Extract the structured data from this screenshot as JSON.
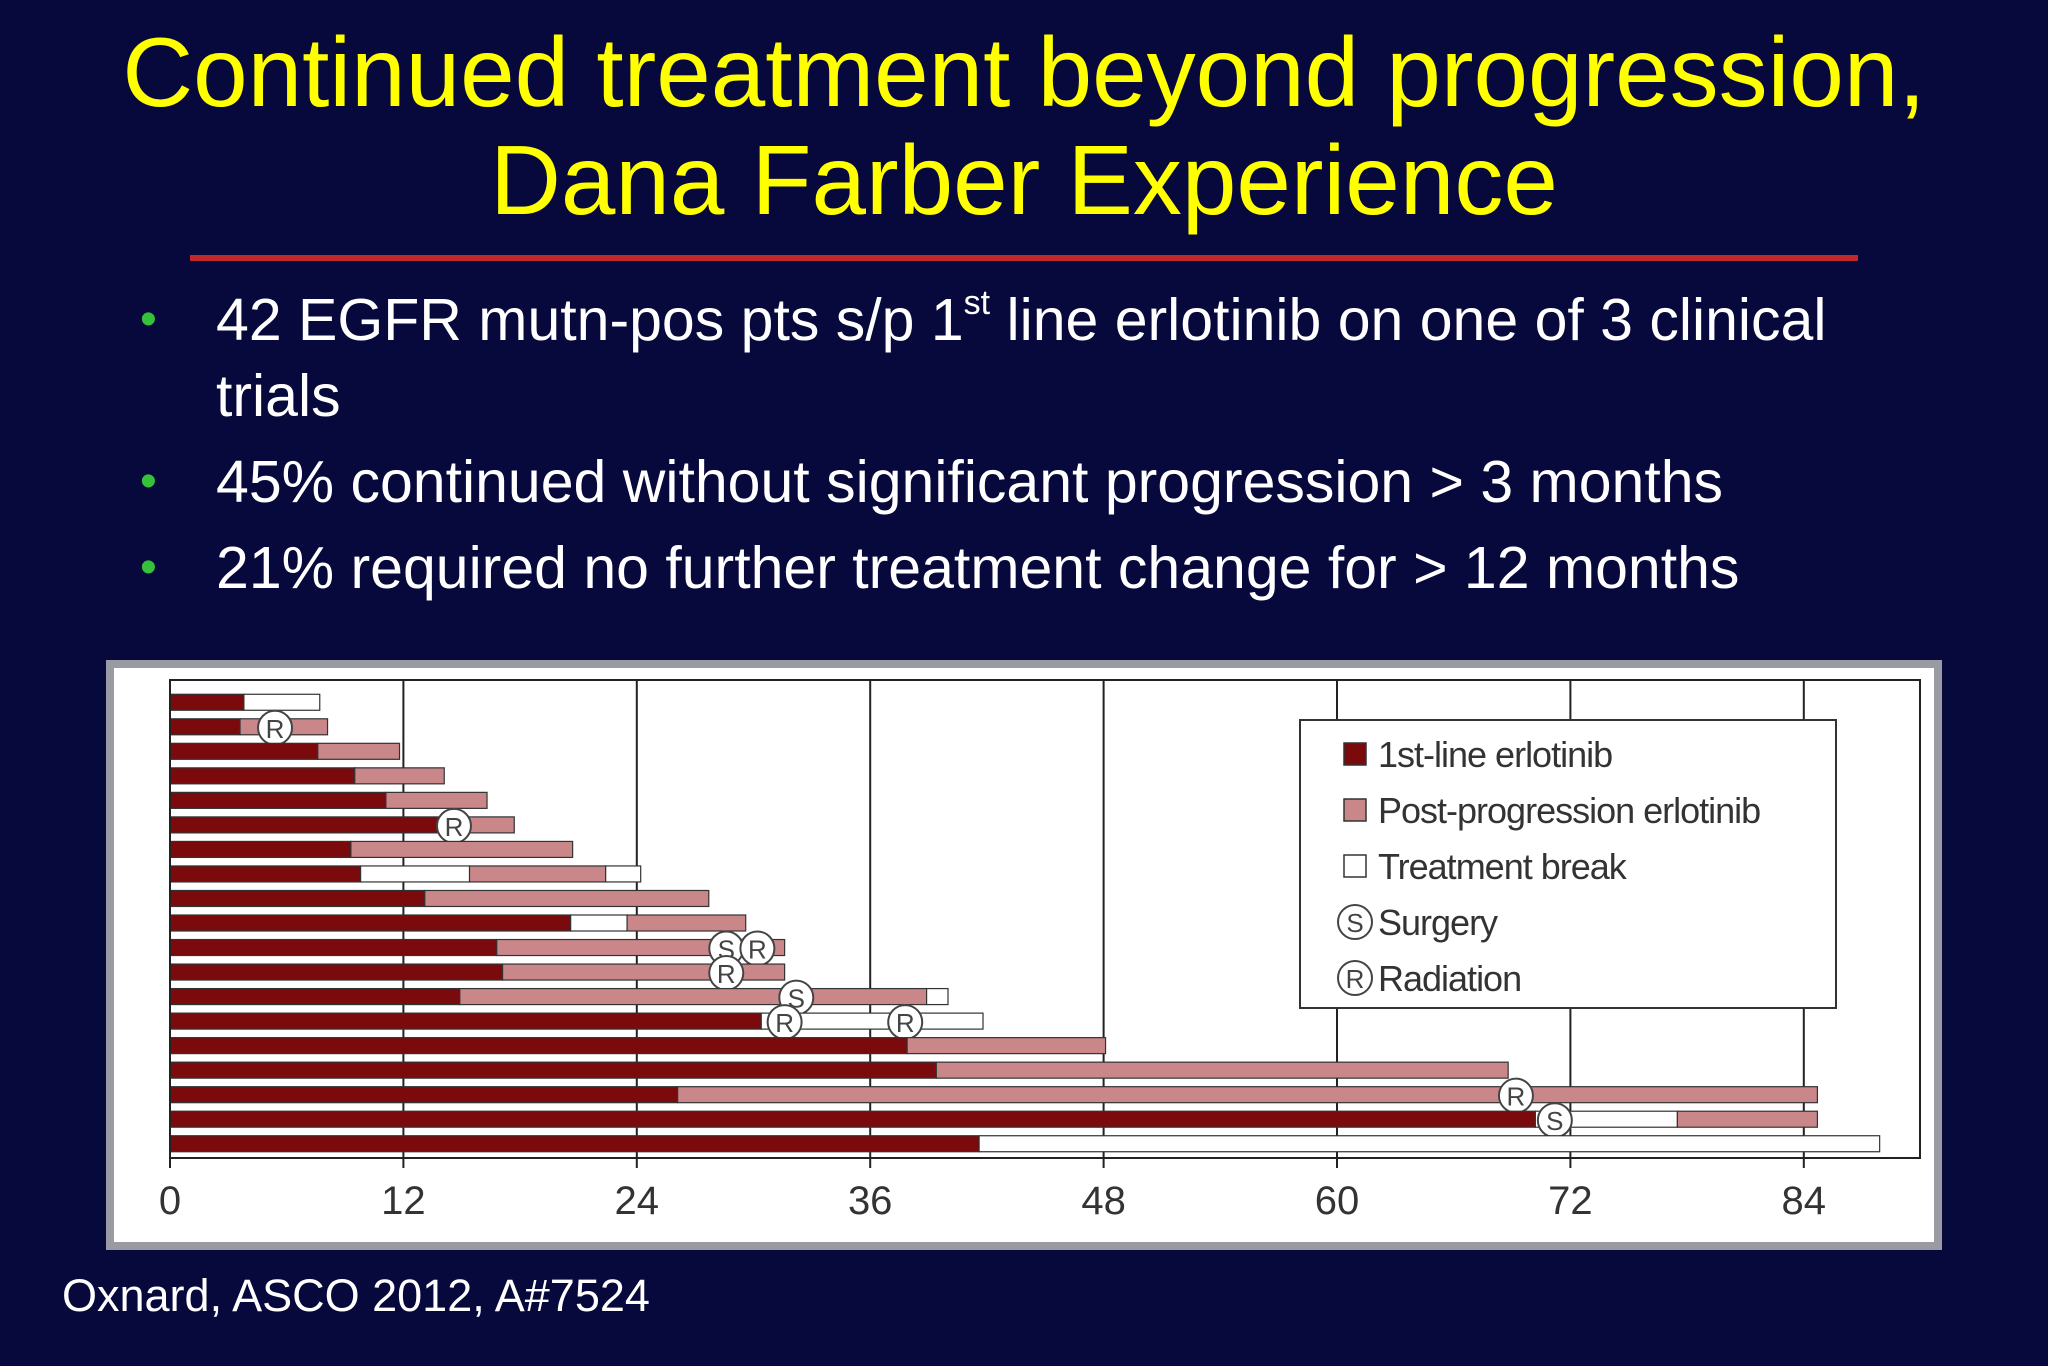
{
  "slide": {
    "title_line1": "Continued treatment beyond progression,",
    "title_line2": "Dana Farber Experience",
    "bullets": [
      {
        "pre": "42 EGFR mutn-pos pts s/p 1",
        "sup": "st",
        "post": " line erlotinib on one of 3 clinical trials"
      },
      {
        "pre": "45% continued without significant progression > 3 months",
        "sup": "",
        "post": ""
      },
      {
        "pre": "21% required no further treatment change for > 12 months",
        "sup": "",
        "post": ""
      }
    ],
    "bullet_glyph": "•",
    "citation": "Oxnard, ASCO 2012, A#7524"
  },
  "colors": {
    "background": "#07083b",
    "title": "#ffff00",
    "rule": "#c0282a",
    "bullet": "#35c23a",
    "first_line": "#7a0a0c",
    "post_progression": "#c9878a",
    "treatment_break": "#ffffff"
  },
  "chart_data": {
    "type": "bar",
    "orientation": "horizontal-stacked-swimmer",
    "xlim": [
      0,
      90
    ],
    "xticks": [
      0,
      12,
      24,
      36,
      48,
      60,
      72,
      84
    ],
    "xtick_labels": [
      "0",
      "12",
      "24",
      "36",
      "48",
      "60",
      "72",
      "84"
    ],
    "xlabel": "",
    "ylabel": "",
    "grid": "vertical",
    "legend_position": "top-right",
    "legend": [
      {
        "label": "1st-line erlotinib",
        "kind": "first",
        "swatch": "square"
      },
      {
        "label": "Post-progression erlotinib",
        "kind": "post",
        "swatch": "square"
      },
      {
        "label": "Treatment break",
        "kind": "break",
        "swatch": "square"
      },
      {
        "label": "Surgery",
        "kind": "S",
        "swatch": "circle"
      },
      {
        "label": "Radiation",
        "kind": "R",
        "swatch": "circle"
      }
    ],
    "patients": [
      {
        "segments": [
          {
            "type": "first",
            "start": 0,
            "end": 3.8
          },
          {
            "type": "break",
            "start": 3.8,
            "end": 7.7
          }
        ],
        "events": [],
        "clipped": []
      },
      {
        "segments": [
          {
            "type": "first",
            "start": 0,
            "end": 3.6
          },
          {
            "type": "post",
            "start": 3.6,
            "end": 8.1
          }
        ],
        "events": [
          {
            "type": "R",
            "x": 5.4
          }
        ],
        "clipped": []
      },
      {
        "segments": [
          {
            "type": "first",
            "start": 0,
            "end": 7.6
          },
          {
            "type": "post",
            "start": 7.6,
            "end": 11.8
          }
        ],
        "events": [],
        "clipped": []
      },
      {
        "segments": [
          {
            "type": "first",
            "start": 0,
            "end": 9.5
          },
          {
            "type": "post",
            "start": 9.5,
            "end": 14.1
          }
        ],
        "events": [],
        "clipped": []
      },
      {
        "segments": [
          {
            "type": "first",
            "start": 0,
            "end": 11.1
          },
          {
            "type": "post",
            "start": 11.1,
            "end": 16.3
          }
        ],
        "events": [],
        "clipped": []
      },
      {
        "segments": [
          {
            "type": "first",
            "start": 0,
            "end": 13.9
          },
          {
            "type": "post",
            "start": 13.9,
            "end": 17.7
          }
        ],
        "events": [
          {
            "type": "R",
            "x": 14.6
          }
        ],
        "clipped": []
      },
      {
        "segments": [
          {
            "type": "first",
            "start": 0,
            "end": 9.3
          },
          {
            "type": "post",
            "start": 9.3,
            "end": 20.7
          }
        ],
        "events": [],
        "clipped": []
      },
      {
        "segments": [
          {
            "type": "first",
            "start": 0,
            "end": 9.8
          },
          {
            "type": "break",
            "start": 9.8,
            "end": 15.4
          },
          {
            "type": "post",
            "start": 15.4,
            "end": 22.4
          },
          {
            "type": "break",
            "start": 22.4,
            "end": 24.2
          }
        ],
        "events": [],
        "clipped": []
      },
      {
        "segments": [
          {
            "type": "first",
            "start": 0,
            "end": 13.1
          },
          {
            "type": "post",
            "start": 13.1,
            "end": 27.7
          }
        ],
        "events": [],
        "clipped": []
      },
      {
        "segments": [
          {
            "type": "first",
            "start": 0,
            "end": 20.6
          },
          {
            "type": "break",
            "start": 20.6,
            "end": 23.5
          },
          {
            "type": "post",
            "start": 23.5,
            "end": 29.6
          }
        ],
        "events": [],
        "clipped": []
      },
      {
        "segments": [
          {
            "type": "first",
            "start": 0,
            "end": 16.8
          },
          {
            "type": "post",
            "start": 16.8,
            "end": 31.6
          }
        ],
        "events": [
          {
            "type": "S",
            "x": 28.6
          },
          {
            "type": "R",
            "x": 30.2
          }
        ],
        "clipped": []
      },
      {
        "segments": [
          {
            "type": "first",
            "start": 0,
            "end": 17.1
          },
          {
            "type": "post",
            "start": 17.1,
            "end": 31.6
          }
        ],
        "events": [
          {
            "type": "R",
            "x": 28.6
          }
        ],
        "clipped": []
      },
      {
        "segments": [
          {
            "type": "first",
            "start": 0,
            "end": 14.9
          },
          {
            "type": "post",
            "start": 14.9,
            "end": 38.9
          },
          {
            "type": "break",
            "start": 38.9,
            "end": 40.0
          }
        ],
        "events": [
          {
            "type": "S",
            "x": 32.2
          }
        ],
        "clipped": []
      },
      {
        "segments": [
          {
            "type": "first",
            "start": 0,
            "end": 30.4
          },
          {
            "type": "break",
            "start": 30.4,
            "end": 37.0
          },
          {
            "type": "post",
            "start": 37.0,
            "end": 38.3
          },
          {
            "type": "break",
            "start": 38.3,
            "end": 41.8
          }
        ],
        "events": [
          {
            "type": "R",
            "x": 31.6
          },
          {
            "type": "R",
            "x": 37.8
          }
        ],
        "clipped": []
      },
      {
        "segments": [
          {
            "type": "first",
            "start": 0,
            "end": 37.9
          },
          {
            "type": "post",
            "start": 37.9,
            "end": 48.1
          }
        ],
        "events": [],
        "clipped": []
      },
      {
        "segments": [
          {
            "type": "first",
            "start": 0,
            "end": 39.4
          },
          {
            "type": "post",
            "start": 39.4,
            "end": 68.8
          }
        ],
        "events": [],
        "clipped": []
      },
      {
        "segments": [
          {
            "type": "first",
            "start": 0,
            "end": 26.1
          },
          {
            "type": "post",
            "start": 26.1,
            "end": 84.7
          }
        ],
        "events": [
          {
            "type": "R",
            "x": 69.2
          }
        ],
        "clipped": []
      },
      {
        "segments": [
          {
            "type": "first",
            "start": 0,
            "end": 70.2
          },
          {
            "type": "break",
            "start": 70.2,
            "end": 77.5
          },
          {
            "type": "post",
            "start": 77.5,
            "end": 84.7
          }
        ],
        "events": [
          {
            "type": "S",
            "x": 71.2
          }
        ],
        "clipped": []
      },
      {
        "segments": [
          {
            "type": "first",
            "start": 0,
            "end": 41.6
          },
          {
            "type": "break",
            "start": 41.6,
            "end": 87.9
          }
        ],
        "events": [],
        "clipped": []
      }
    ]
  }
}
